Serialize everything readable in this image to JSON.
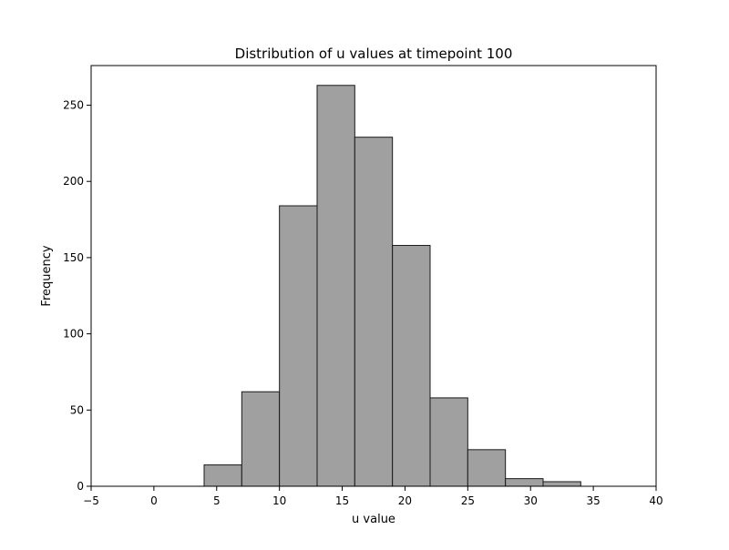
{
  "chart_data": {
    "type": "bar",
    "title": "Distribution of u values at timepoint 100",
    "xlabel": "u value",
    "ylabel": "Frequency",
    "xlim": [
      -5,
      40
    ],
    "ylim": [
      0,
      276
    ],
    "grid": false,
    "bar_color": "#a0a0a0",
    "edge_color": "#1a1a1a",
    "x_ticks": [
      -5,
      0,
      5,
      10,
      15,
      20,
      25,
      30,
      35,
      40
    ],
    "y_ticks": [
      0,
      50,
      100,
      150,
      200,
      250
    ],
    "bins": [
      {
        "start": 4,
        "end": 7,
        "count": 14
      },
      {
        "start": 7,
        "end": 10,
        "count": 62
      },
      {
        "start": 10,
        "end": 13,
        "count": 184
      },
      {
        "start": 13,
        "end": 16,
        "count": 263
      },
      {
        "start": 16,
        "end": 19,
        "count": 229
      },
      {
        "start": 19,
        "end": 22,
        "count": 158
      },
      {
        "start": 22,
        "end": 25,
        "count": 58
      },
      {
        "start": 25,
        "end": 28,
        "count": 24
      },
      {
        "start": 28,
        "end": 31,
        "count": 5
      },
      {
        "start": 31,
        "end": 34,
        "count": 3
      }
    ]
  }
}
